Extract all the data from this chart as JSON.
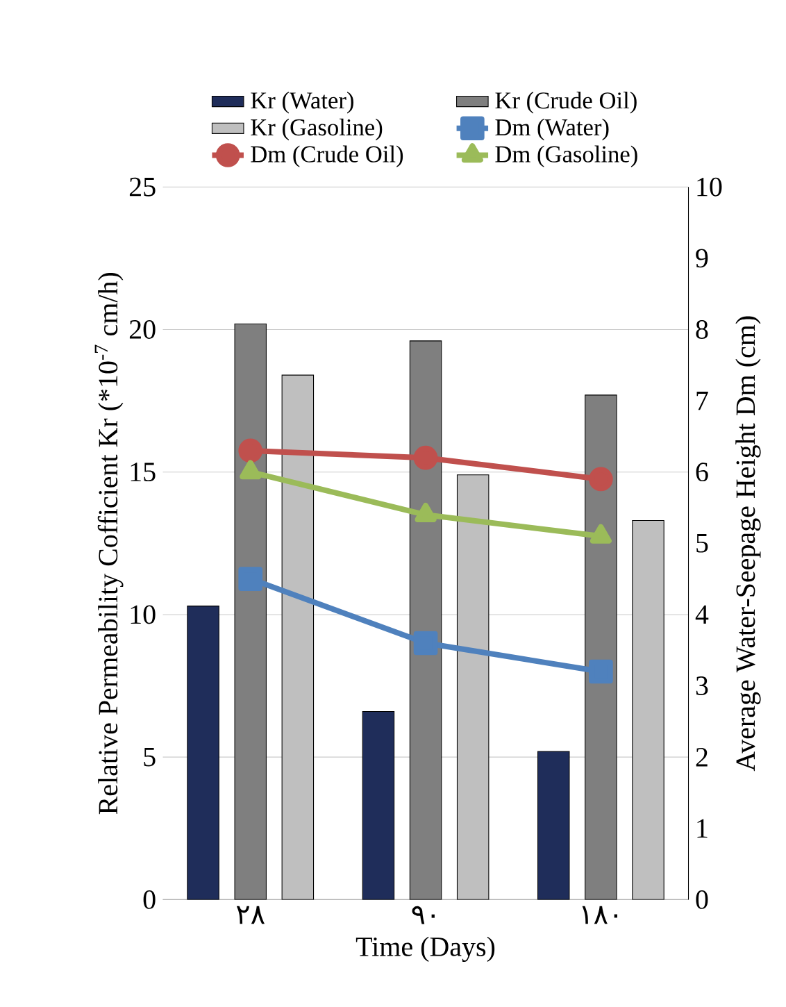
{
  "chart_data": {
    "type": "bar",
    "xlabel": "Time (Days)",
    "ylabel": "Relative Permeability Cofficient Kr (*10$^{-7}$ cm/h)",
    "y2label": "Average Water-Seepage Height Dm (cm)",
    "categories": [
      "٢٨",
      "٩٠",
      "١٨٠"
    ],
    "series": [
      {
        "name": "Kr (Water)",
        "color": "#1f2d5a",
        "values": [
          10.3,
          6.6,
          5.2
        ]
      },
      {
        "name": "Kr (Crude Oil)",
        "color": "#7f7f7f",
        "values": [
          20.2,
          19.6,
          17.7
        ]
      },
      {
        "name": "Kr (Gasoline)",
        "color": "#bfbfbf",
        "values": [
          18.4,
          14.9,
          13.3
        ]
      },
      {
        "name": "Dm (Water)",
        "type": "line",
        "axis": "y2",
        "marker": "square",
        "color": "#4f81bd",
        "values": [
          4.5,
          3.6,
          3.2
        ]
      },
      {
        "name": "Dm (Crude Oil)",
        "type": "line",
        "axis": "y2",
        "marker": "circle",
        "color": "#c0504d",
        "values": [
          6.3,
          6.2,
          5.9
        ]
      },
      {
        "name": "Dm (Gasoline)",
        "type": "line",
        "axis": "y2",
        "marker": "triangle",
        "color": "#9bbb59",
        "values": [
          6.0,
          5.4,
          5.1
        ]
      }
    ],
    "ylim": [
      0,
      25
    ],
    "yticks": [
      0,
      5,
      10,
      15,
      20,
      25
    ],
    "y2lim": [
      0,
      10
    ],
    "y2ticks": [
      0,
      1,
      2,
      3,
      4,
      5,
      6,
      7,
      8,
      9,
      10
    ],
    "grid": "y",
    "legend": "top"
  }
}
